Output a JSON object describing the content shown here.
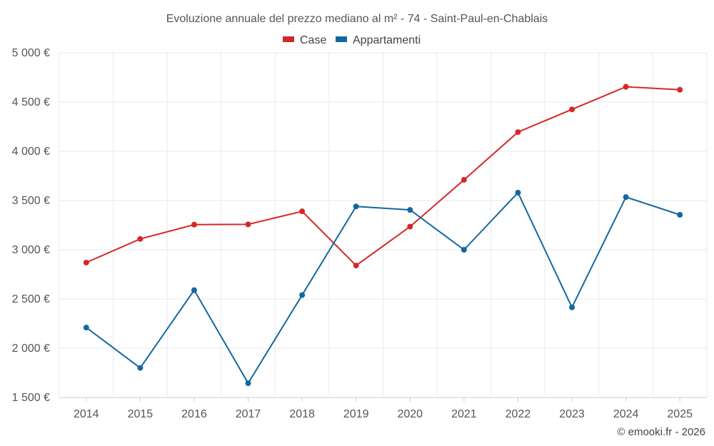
{
  "chart_data": {
    "type": "line",
    "title": "Evoluzione annuale del prezzo mediano al m² - 74 - Saint-Paul-en-Chablais",
    "categories": [
      "2014",
      "2015",
      "2016",
      "2017",
      "2018",
      "2019",
      "2020",
      "2021",
      "2022",
      "2023",
      "2024",
      "2025"
    ],
    "series": [
      {
        "name": "Case",
        "color": "#d62728",
        "values": [
          2870,
          3110,
          3255,
          3258,
          3390,
          2840,
          3235,
          3710,
          4195,
          4425,
          4655,
          4625
        ]
      },
      {
        "name": "Appartamenti",
        "color": "#1467a0",
        "values": [
          2210,
          1800,
          2590,
          1645,
          2540,
          3440,
          3405,
          3000,
          3580,
          2415,
          3535,
          3355
        ]
      }
    ],
    "ylim": [
      1500,
      5000
    ],
    "y_ticks": [
      {
        "value": 1500,
        "label": "1 500 €"
      },
      {
        "value": 2000,
        "label": "2 000 €"
      },
      {
        "value": 2500,
        "label": "2 500 €"
      },
      {
        "value": 3000,
        "label": "3 000 €"
      },
      {
        "value": 3500,
        "label": "3 500 €"
      },
      {
        "value": 4000,
        "label": "4 000 €"
      },
      {
        "value": 4500,
        "label": "4 500 €"
      },
      {
        "value": 5000,
        "label": "5 000 €"
      }
    ],
    "legend_position": "top-center",
    "grid": true
  },
  "credit": "© emooki.fr - 2026"
}
